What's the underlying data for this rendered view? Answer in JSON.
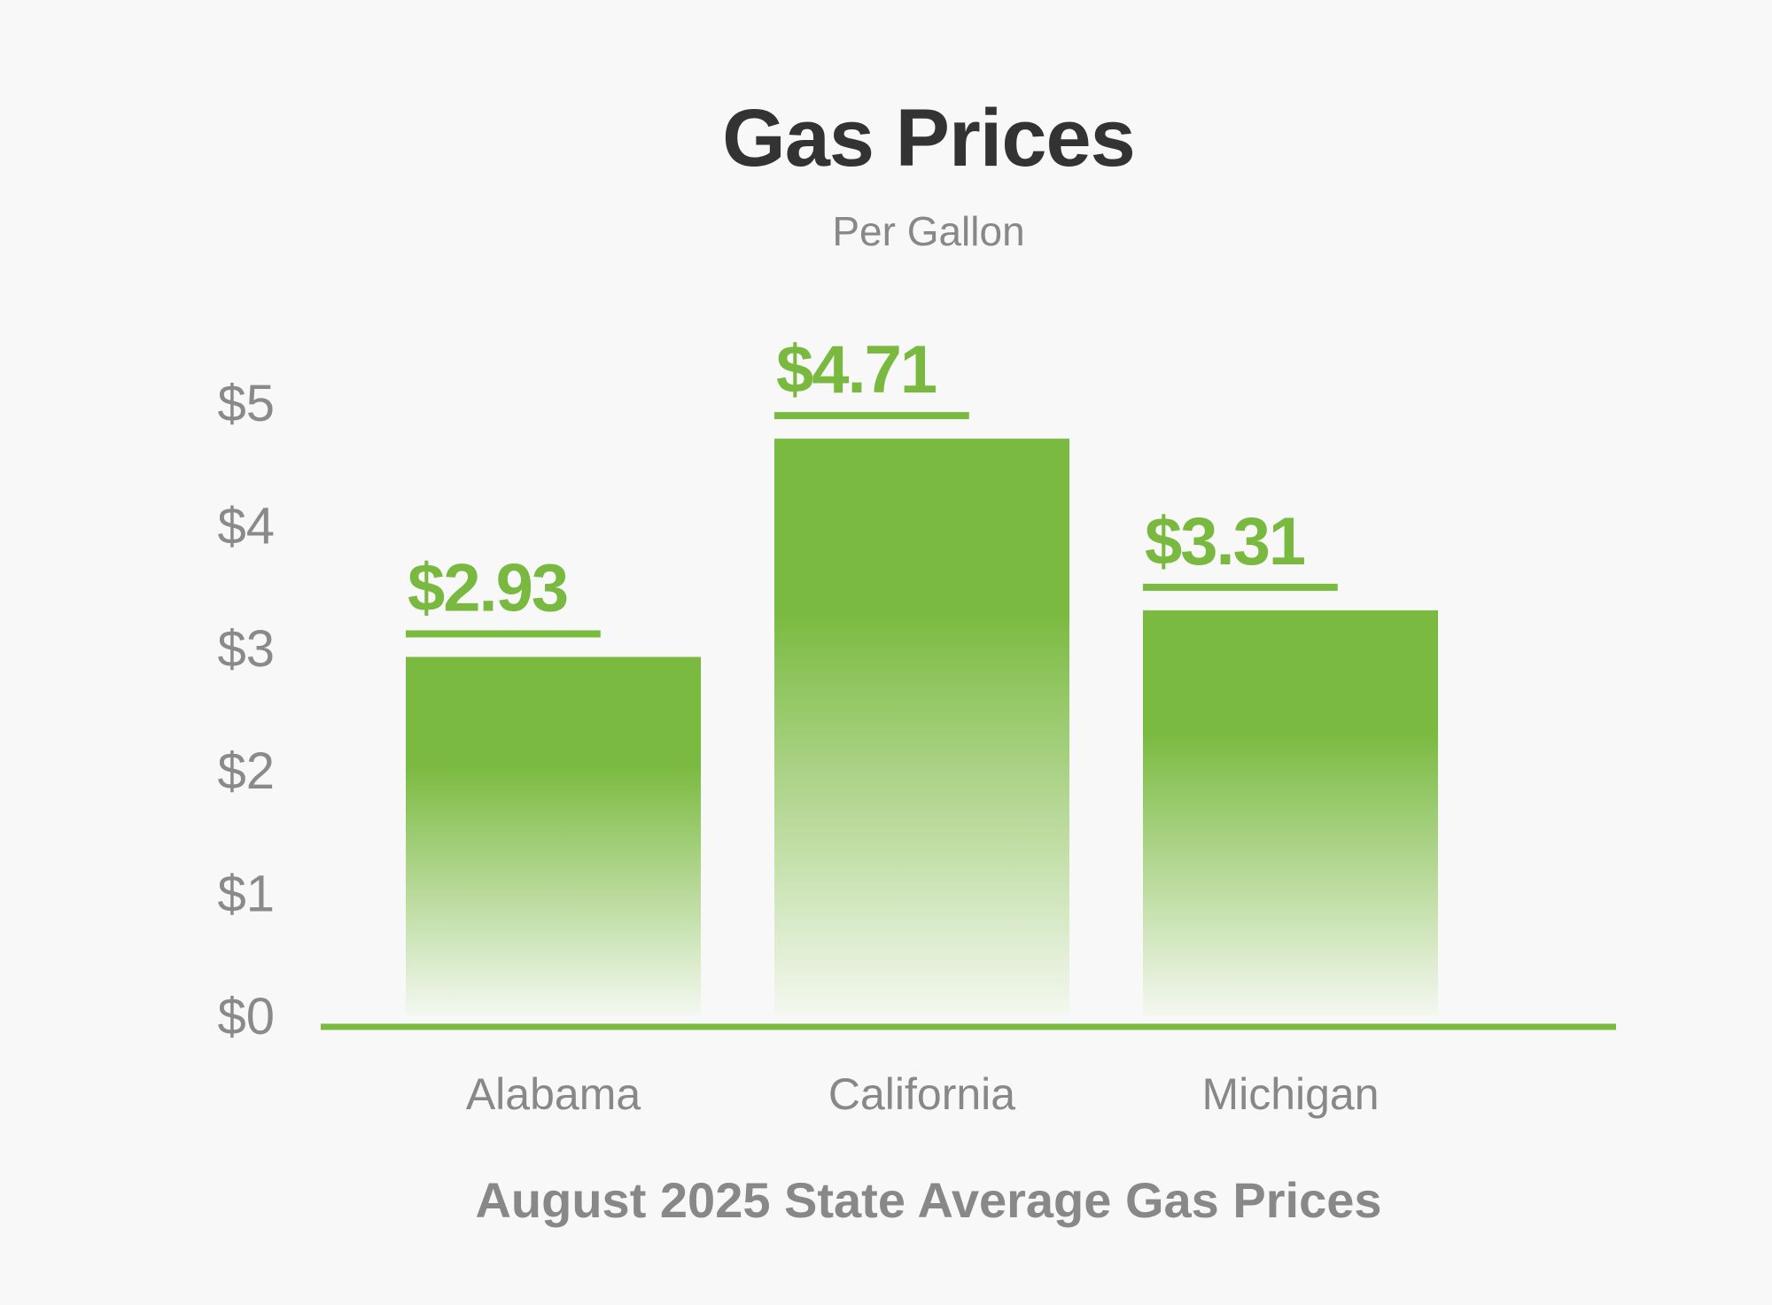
{
  "chart_data": {
    "type": "bar",
    "title": "Gas Prices",
    "subtitle": "Per Gallon",
    "xlabel": "August 2025 State Average Gas Prices",
    "ylabel": "",
    "categories": [
      "Alabama",
      "California",
      "Michigan"
    ],
    "values": [
      2.93,
      4.71,
      3.31
    ],
    "value_labels": [
      "$2.93",
      "$4.71",
      "$3.31"
    ],
    "ylim": [
      0,
      5
    ],
    "y_ticks": [
      0,
      1,
      2,
      3,
      4,
      5
    ],
    "y_tick_labels": [
      "$0",
      "$1",
      "$2",
      "$3",
      "$4",
      "$5"
    ],
    "grid": false,
    "legend": "none",
    "colors": {
      "bar": "#7aba40",
      "bar_fade": "#f4f8f0",
      "baseline": "#7aba40",
      "value_text": "#79b93f",
      "title_text": "#333333",
      "muted_text": "#888888",
      "background": "#f8f8f8"
    }
  }
}
